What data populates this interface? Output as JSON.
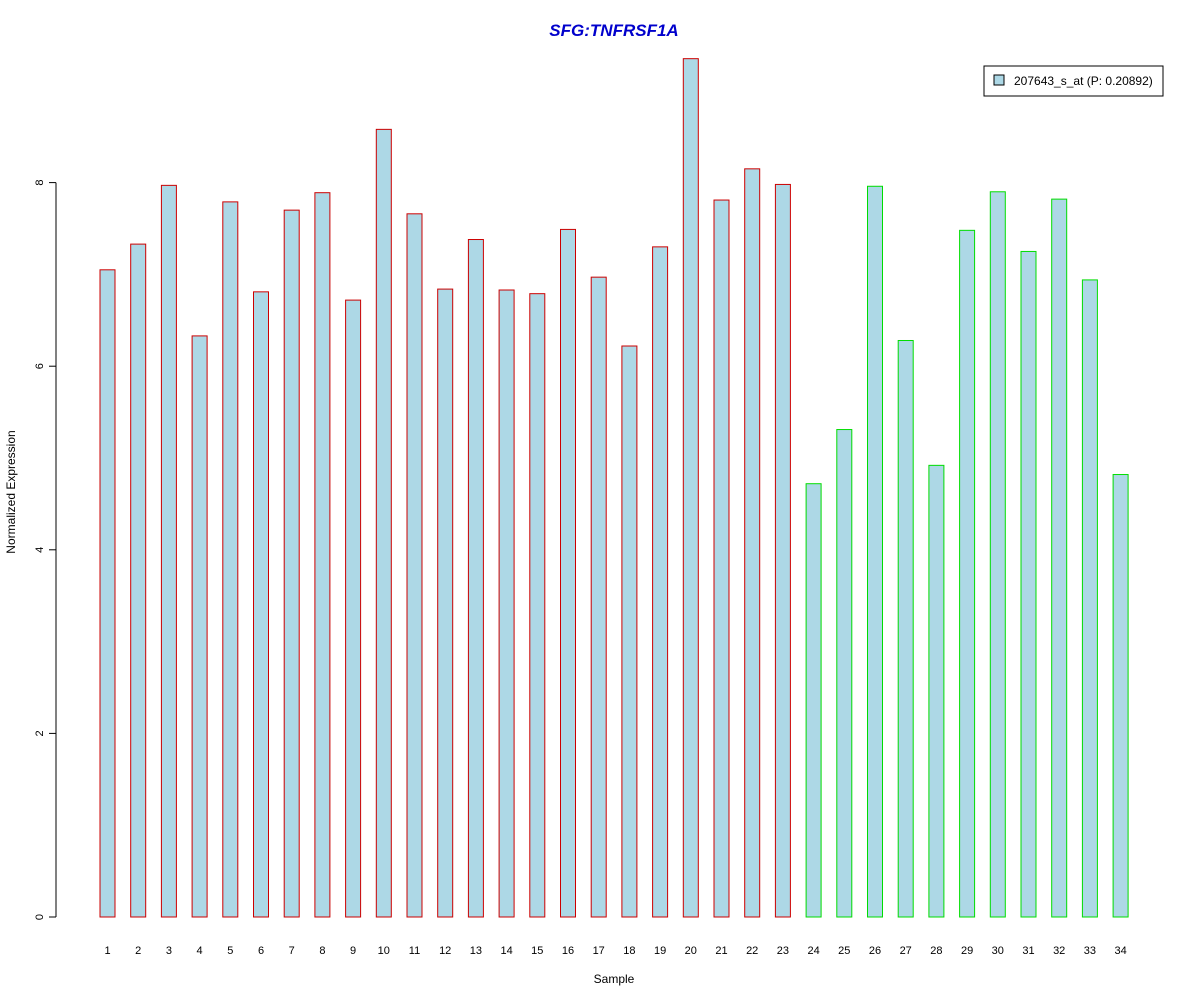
{
  "chart_data": {
    "type": "bar",
    "title": "SFG:TNFRSF1A",
    "title_color": "#0000CC",
    "xlabel": "Sample",
    "ylabel": "Normalized Expression",
    "categories": [
      "1",
      "2",
      "3",
      "4",
      "5",
      "6",
      "7",
      "8",
      "9",
      "10",
      "11",
      "12",
      "13",
      "14",
      "15",
      "16",
      "17",
      "18",
      "19",
      "20",
      "21",
      "22",
      "23",
      "24",
      "25",
      "26",
      "27",
      "28",
      "29",
      "30",
      "31",
      "32",
      "33",
      "34"
    ],
    "series": [
      {
        "name": "207643_s_at (P: 0.20892)",
        "values": [
          7.05,
          7.33,
          7.97,
          6.33,
          7.79,
          6.81,
          7.7,
          7.89,
          6.72,
          8.58,
          7.66,
          6.84,
          7.38,
          6.83,
          6.79,
          7.49,
          6.97,
          6.22,
          7.3,
          9.35,
          7.81,
          8.15,
          7.98,
          4.72,
          5.31,
          7.96,
          6.28,
          4.92,
          7.48,
          7.9,
          7.25,
          7.82,
          6.94,
          4.82
        ],
        "fill": "#ADD8E6"
      }
    ],
    "group_border_colors": [
      "#CC0000",
      "#CC0000",
      "#CC0000",
      "#CC0000",
      "#CC0000",
      "#CC0000",
      "#CC0000",
      "#CC0000",
      "#CC0000",
      "#CC0000",
      "#CC0000",
      "#CC0000",
      "#CC0000",
      "#CC0000",
      "#CC0000",
      "#CC0000",
      "#CC0000",
      "#CC0000",
      "#CC0000",
      "#CC0000",
      "#CC0000",
      "#CC0000",
      "#CC0000",
      "#00DD00",
      "#00DD00",
      "#00DD00",
      "#00DD00",
      "#00DD00",
      "#00DD00",
      "#00DD00",
      "#00DD00",
      "#00DD00",
      "#00DD00",
      "#00DD00"
    ],
    "y_ticks": [
      "0",
      "2",
      "4",
      "6",
      "8"
    ],
    "ylim": [
      0,
      9.6
    ],
    "grid": false,
    "legend_position": "top-right"
  }
}
